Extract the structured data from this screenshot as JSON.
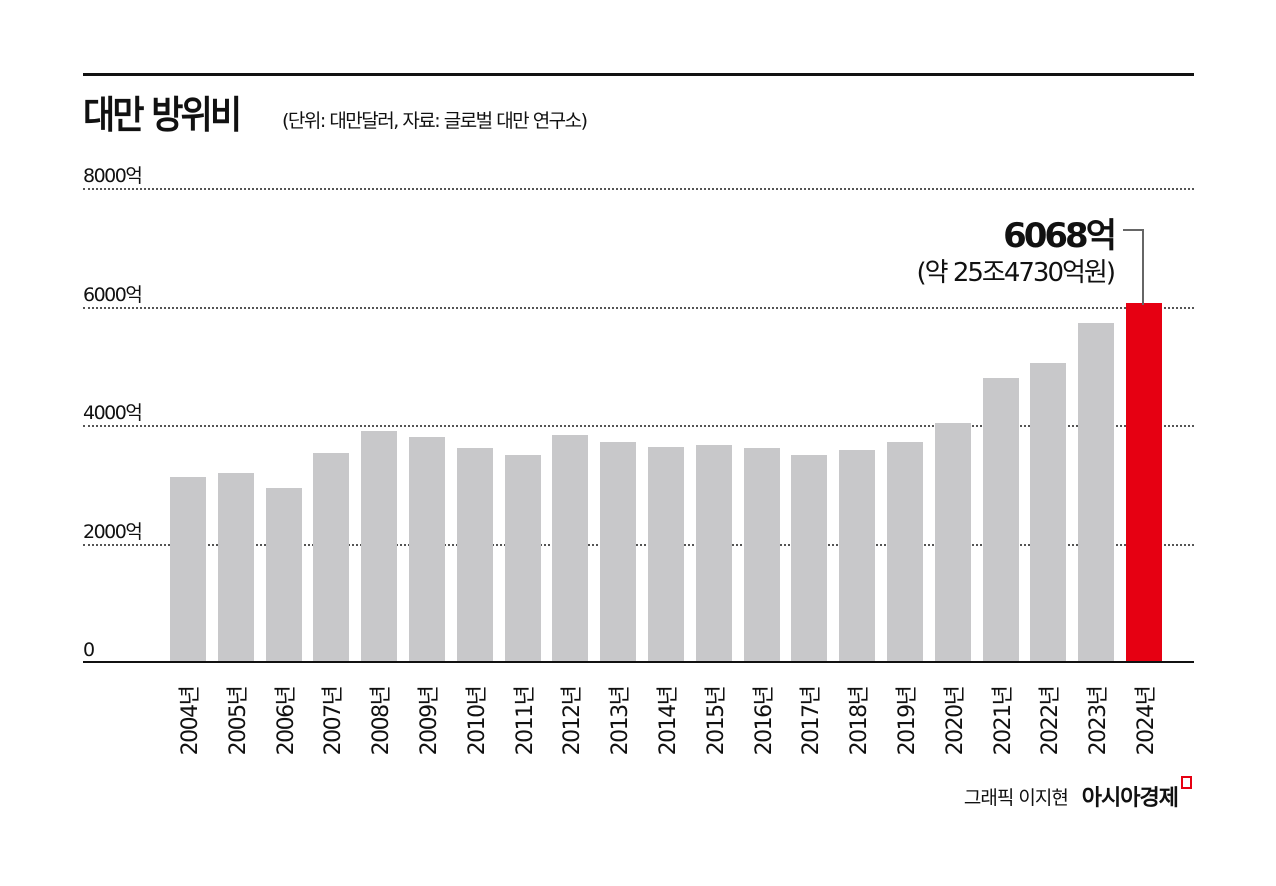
{
  "header": {
    "title": "대만 방위비",
    "subtitle": "(단위: 대만달러, 자료: 글로벌 대만 연구소)"
  },
  "annotation": {
    "value": "6068억",
    "sub": "(약 25조4730억원)"
  },
  "footer": {
    "credit": "그래픽 이지현",
    "brand": "아시아경제"
  },
  "colors": {
    "bar": "#c8c8ca",
    "highlight": "#e60012"
  },
  "chart_data": {
    "type": "bar",
    "title": "대만 방위비",
    "subtitle": "(단위: 대만달러, 자료: 글로벌 대만 연구소)",
    "xlabel": "",
    "ylabel": "",
    "unit": "억 대만달러",
    "ylim": [
      0,
      8000
    ],
    "yticks": [
      0,
      2000,
      4000,
      6000,
      8000
    ],
    "ytick_labels": [
      "0",
      "2000억",
      "4000억",
      "6000억",
      "8000억"
    ],
    "grid": true,
    "categories": [
      "2004년",
      "2005년",
      "2006년",
      "2007년",
      "2008년",
      "2009년",
      "2010년",
      "2011년",
      "2012년",
      "2013년",
      "2014년",
      "2015년",
      "2016년",
      "2017년",
      "2018년",
      "2019년",
      "2020년",
      "2021년",
      "2022년",
      "2023년",
      "2024년"
    ],
    "values": [
      3140,
      3210,
      2960,
      3550,
      3920,
      3820,
      3630,
      3510,
      3850,
      3730,
      3650,
      3680,
      3630,
      3510,
      3600,
      3730,
      4050,
      4810,
      5060,
      5730,
      6068
    ],
    "highlight_index": 20,
    "annotations": [
      {
        "category": "2024년",
        "text": "6068억",
        "subtext": "(약 25조4730억원)"
      }
    ]
  }
}
